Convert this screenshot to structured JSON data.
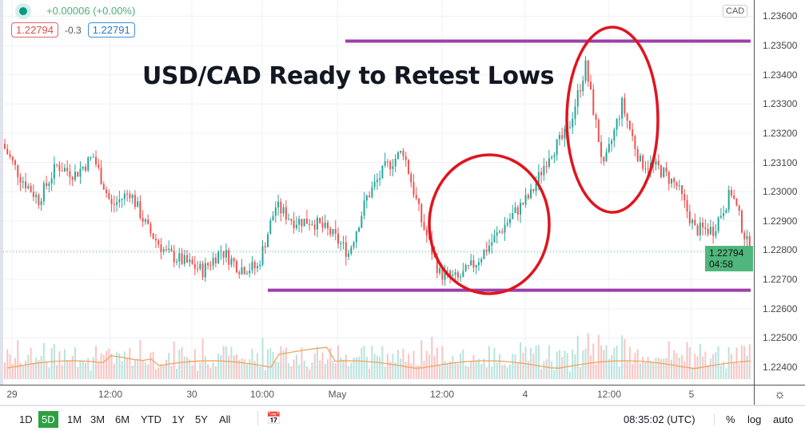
{
  "legend": {
    "change": "+0.00006 (+0.00%)",
    "bid": "1.22794",
    "spread": "-0.3",
    "ask": "1.22791"
  },
  "colors": {
    "up": "#26a69a",
    "down": "#ef5350",
    "level_line": "#9c3fa8",
    "ellipse": "#e0141e",
    "price_label": "#4fb77c",
    "volume_ma": "#f2a35e"
  },
  "currency_badge": "CAD",
  "price_label": {
    "price": "1.22794",
    "countdown": "04:58"
  },
  "toolbar": {
    "ranges": [
      "1D",
      "5D",
      "1M",
      "3M",
      "6M",
      "YTD",
      "1Y",
      "5Y",
      "All"
    ],
    "selected": "5D",
    "time": "08:35:02 (UTC)",
    "percent": "%",
    "log": "log",
    "auto": "auto"
  },
  "chart_data": {
    "type": "candlestick",
    "title": "USD/CAD Ready to Retest Lows",
    "yticks": [
      "1.23600",
      "1.23500",
      "1.23400",
      "1.23300",
      "1.23200",
      "1.23100",
      "1.23000",
      "1.22900",
      "1.22800",
      "1.22700",
      "1.22600",
      "1.22500",
      "1.22400"
    ],
    "ylim": [
      1.2237,
      1.2366
    ],
    "xticks": [
      "29",
      "12:00",
      "30",
      "10:00",
      "May",
      "12:00",
      "4",
      "12:00",
      "5"
    ],
    "close": [
      1.23164,
      1.2305,
      1.22973,
      1.2309,
      1.2306,
      1.2312,
      1.2295,
      1.23,
      1.2287,
      1.2279,
      1.2276,
      1.2273,
      1.228,
      1.2274,
      1.2274,
      1.2295,
      1.229,
      1.229,
      1.2286,
      1.2279,
      1.2298,
      1.2308,
      1.2314,
      1.229,
      1.2272,
      1.227,
      1.2276,
      1.2284,
      1.2292,
      1.2299,
      1.2313,
      1.232,
      1.2343,
      1.2308,
      1.233,
      1.231,
      1.2308,
      1.2302,
      1.2287,
      1.2287,
      1.23,
      1.22794
    ],
    "levels": [
      1.23515,
      1.22663
    ],
    "grid": true
  }
}
